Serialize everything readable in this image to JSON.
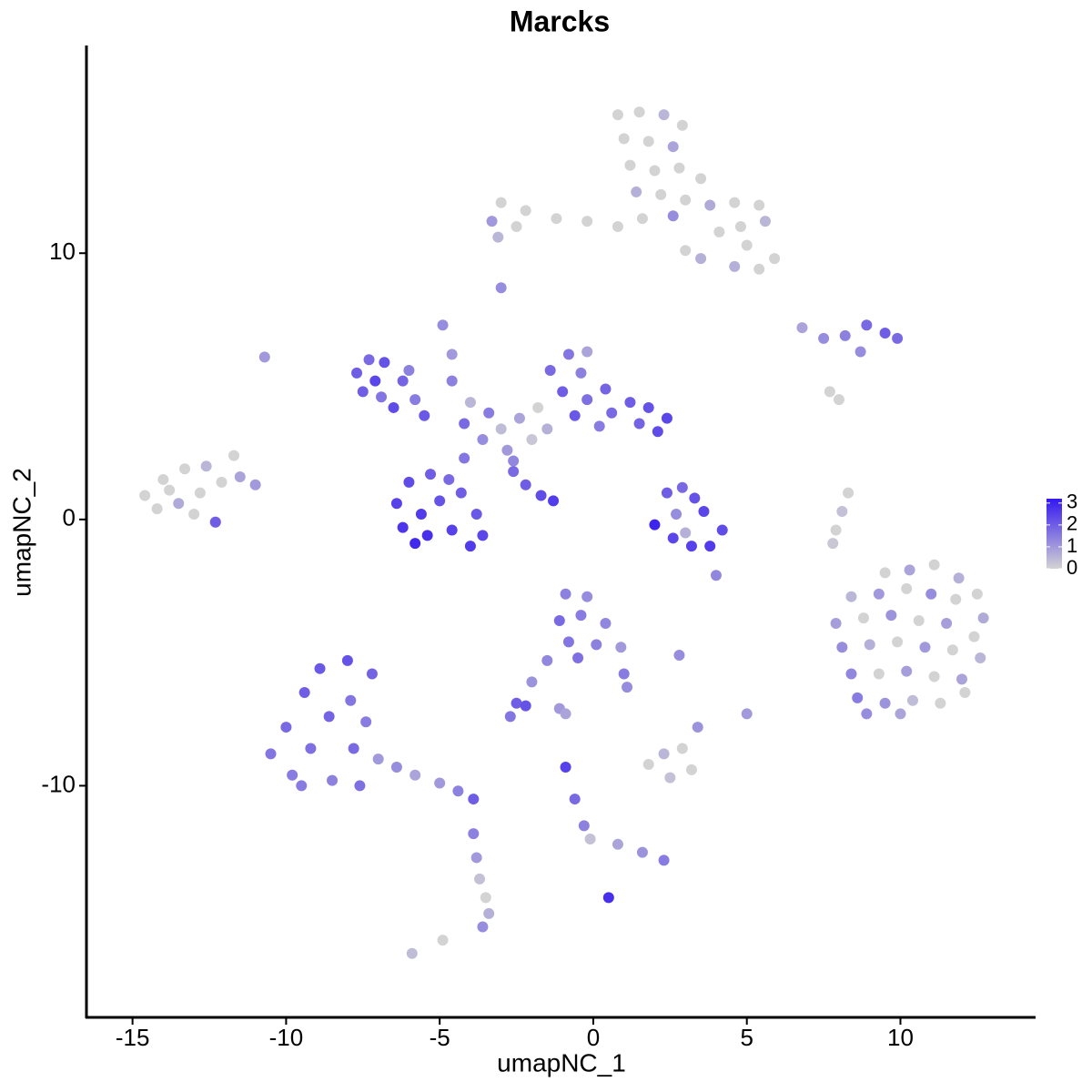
{
  "chart_data": {
    "type": "scatter",
    "title": "Marcks",
    "x_label": "umapNC_1",
    "y_label": "umapNC_2",
    "xlim": [
      -16.5,
      14.4
    ],
    "ylim": [
      -18.7,
      17.8
    ],
    "xticks": [
      -15,
      -10,
      -5,
      0,
      5,
      10
    ],
    "yticks": [
      -10,
      0,
      10
    ],
    "colorbar": {
      "lim": [
        0,
        3.2
      ],
      "ticks": [
        0,
        1,
        2,
        3
      ],
      "colors": [
        "#d3d3d3",
        "#3318f0"
      ]
    },
    "x": [
      0.8,
      1.5,
      2.3,
      2.9,
      1.0,
      1.8,
      2.6,
      1.2,
      2.0,
      2.8,
      3.5,
      1.4,
      2.2,
      3.0,
      3.8,
      4.6,
      5.4,
      5.6,
      4.8,
      4.1,
      1.6,
      2.6,
      5.0,
      5.9,
      5.4,
      4.6,
      0.8,
      -0.2,
      -1.2,
      -2.2,
      -3.0,
      -3.3,
      -2.5,
      -3.1,
      3.0,
      3.5,
      -14.6,
      -14.0,
      -13.3,
      -12.6,
      -14.2,
      -13.5,
      -12.8,
      -12.1,
      -11.5,
      -11.7,
      -11.0,
      -13.0,
      -12.3,
      -13.8,
      -7.7,
      -7.3,
      -6.8,
      -7.5,
      -6.9,
      -6.2,
      -6.5,
      -5.8,
      -5.5,
      -6.0,
      -7.1,
      -6.4,
      -6.0,
      -5.3,
      -4.7,
      -6.2,
      -5.6,
      -5.0,
      -4.3,
      -5.4,
      -4.6,
      -3.8,
      -3.6,
      -4.2,
      -5.8,
      -4.0,
      -3.6,
      -3.0,
      -2.4,
      -1.8,
      -2.8,
      -2.0,
      -3.4,
      -4.2,
      -1.5,
      -4.6,
      -4.9,
      -4.6,
      -4.0,
      -2.6,
      -1.4,
      -0.8,
      -0.4,
      -1.0,
      -0.2,
      0.4,
      -0.6,
      0.6,
      1.2,
      1.8,
      2.4,
      2.1,
      1.5,
      0.2,
      -0.2,
      -2.6,
      -2.2,
      -1.7,
      -1.3,
      2.4,
      2.9,
      3.3,
      3.6,
      4.2,
      3.8,
      3.2,
      2.6,
      2.0,
      2.7,
      3.0,
      6.8,
      7.5,
      8.2,
      8.9,
      9.5,
      9.9,
      8.7,
      7.7,
      8.0,
      9.5,
      10.3,
      11.1,
      11.9,
      12.5,
      8.4,
      9.3,
      10.2,
      11.0,
      11.8,
      12.7,
      7.9,
      8.8,
      9.7,
      10.6,
      11.5,
      12.4,
      8.1,
      9.0,
      9.9,
      10.8,
      11.7,
      12.6,
      8.4,
      9.3,
      10.2,
      11.1,
      12.0,
      8.6,
      9.5,
      10.4,
      11.3,
      12.1,
      8.9,
      10.0,
      -0.9,
      -0.2,
      -1.1,
      -0.4,
      0.4,
      -0.8,
      0.1,
      0.9,
      -0.5,
      1.0,
      1.1,
      -1.5,
      -2.0,
      -2.5,
      -2.2,
      -2.7,
      -1.1,
      -10.5,
      -10.0,
      -9.8,
      -9.4,
      -9.2,
      -8.9,
      -8.6,
      -8.5,
      -8.0,
      -7.9,
      -7.8,
      -7.4,
      -7.6,
      -7.0,
      -6.4,
      -5.8,
      -5.0,
      -4.4,
      -3.9,
      -9.5,
      -7.2,
      -3.9,
      -3.8,
      -3.7,
      -3.5,
      -3.4,
      -3.6,
      -5.9,
      -4.9,
      1.8,
      2.3,
      2.9,
      3.2,
      2.5,
      -0.9,
      -0.6,
      -0.3,
      -0.1,
      0.8,
      1.6,
      2.3,
      0.5,
      8.3,
      8.1,
      7.9,
      7.8,
      -10.7,
      -3.0,
      4.0,
      5.0,
      3.4,
      2.8,
      -0.9,
      -12.3
    ],
    "y": [
      15.2,
      15.3,
      15.2,
      14.8,
      14.3,
      14.2,
      14.0,
      13.3,
      13.1,
      13.2,
      12.8,
      12.3,
      12.2,
      12.0,
      11.8,
      11.9,
      11.8,
      11.2,
      11.0,
      10.8,
      11.3,
      11.4,
      10.3,
      9.8,
      9.4,
      9.5,
      11.0,
      11.2,
      11.3,
      11.6,
      11.9,
      11.2,
      11.0,
      10.6,
      10.1,
      9.8,
      0.9,
      1.5,
      1.9,
      2.0,
      0.4,
      0.6,
      1.0,
      1.4,
      1.6,
      2.4,
      1.3,
      0.2,
      -0.1,
      1.1,
      5.5,
      6.0,
      5.9,
      4.8,
      4.6,
      5.2,
      4.2,
      4.5,
      3.9,
      5.6,
      5.2,
      0.6,
      1.4,
      1.7,
      1.5,
      -0.3,
      0.2,
      0.7,
      1.0,
      -0.6,
      -0.4,
      0.2,
      -0.6,
      2.3,
      -0.9,
      -1.0,
      3.0,
      3.4,
      3.8,
      4.2,
      2.6,
      3.0,
      4.0,
      3.6,
      3.4,
      5.2,
      7.3,
      6.2,
      4.4,
      2.2,
      5.6,
      6.2,
      5.5,
      4.8,
      4.5,
      4.9,
      3.9,
      4.0,
      4.4,
      4.2,
      3.8,
      3.3,
      3.6,
      3.5,
      6.3,
      1.8,
      1.3,
      0.9,
      0.7,
      1.0,
      1.2,
      0.8,
      0.3,
      -0.4,
      -1.0,
      -1.0,
      -0.7,
      -0.2,
      0.2,
      -0.5,
      7.2,
      6.8,
      6.9,
      7.3,
      7.0,
      6.8,
      6.3,
      4.8,
      4.5,
      -2.0,
      -1.9,
      -1.7,
      -2.2,
      -2.8,
      -2.9,
      -2.8,
      -2.6,
      -2.8,
      -3.0,
      -3.7,
      -3.9,
      -3.7,
      -3.6,
      -3.8,
      -3.9,
      -4.4,
      -4.8,
      -4.7,
      -4.6,
      -4.8,
      -4.9,
      -5.2,
      -5.8,
      -5.8,
      -5.7,
      -5.9,
      -6.0,
      -6.7,
      -6.9,
      -6.8,
      -6.9,
      -6.5,
      -7.3,
      -7.3,
      -2.8,
      -2.9,
      -3.8,
      -3.6,
      -3.9,
      -4.6,
      -4.7,
      -4.8,
      -5.2,
      -5.8,
      -6.3,
      -5.3,
      -6.1,
      -6.9,
      -7.0,
      -7.4,
      -7.1,
      -8.8,
      -7.8,
      -9.6,
      -6.5,
      -8.6,
      -5.6,
      -7.4,
      -9.8,
      -5.3,
      -6.8,
      -8.6,
      -7.6,
      -10.0,
      -9.0,
      -9.3,
      -9.6,
      -9.9,
      -10.2,
      -10.5,
      -10.0,
      -5.8,
      -11.8,
      -12.7,
      -13.5,
      -14.2,
      -14.8,
      -15.3,
      -16.3,
      -15.8,
      -9.2,
      -8.8,
      -8.6,
      -9.4,
      -9.7,
      -9.3,
      -10.5,
      -11.5,
      -12.0,
      -12.2,
      -12.5,
      -12.8,
      -14.2,
      1.0,
      0.3,
      -0.4,
      -0.9,
      6.1,
      8.7,
      -2.1,
      -7.3,
      -7.8,
      -5.1,
      -7.3,
      -0.1
    ],
    "values": [
      0,
      0,
      0.5,
      0,
      0,
      0,
      0.8,
      0,
      0,
      0,
      0,
      0.6,
      0,
      0,
      0.7,
      0,
      0,
      0.5,
      0,
      0,
      0,
      1.2,
      0,
      0,
      0,
      0.6,
      0,
      0,
      0,
      0,
      0,
      1.0,
      0,
      0.5,
      0,
      0.6,
      0,
      0,
      0,
      0.5,
      0,
      0.7,
      0,
      0,
      0.8,
      0,
      1.0,
      0,
      0.9,
      0,
      2.0,
      1.8,
      2.2,
      2.0,
      1.6,
      1.9,
      2.3,
      1.5,
      2.1,
      1.4,
      2.4,
      2.5,
      2.3,
      2.0,
      1.8,
      2.7,
      2.6,
      2.2,
      2.0,
      2.8,
      2.5,
      2.1,
      2.4,
      1.6,
      2.9,
      2.6,
      1.2,
      0.4,
      0.8,
      0,
      1.0,
      0.2,
      1.5,
      1.8,
      0.6,
      1.4,
      1.2,
      1.0,
      0.5,
      1.3,
      1.8,
      1.6,
      1.4,
      2.0,
      1.7,
      1.9,
      2.1,
      1.8,
      2.0,
      2.2,
      2.4,
      2.3,
      1.9,
      1.5,
      0.8,
      1.8,
      2.0,
      2.3,
      2.6,
      2.0,
      1.8,
      2.2,
      2.4,
      2.3,
      2.6,
      2.5,
      2.4,
      3.0,
      1.2,
      0.6,
      0.8,
      1.2,
      1.4,
      1.8,
      2.0,
      1.8,
      1.2,
      0,
      0,
      0,
      0.8,
      0,
      0.6,
      0,
      0.5,
      1.0,
      0,
      1.2,
      0,
      0.7,
      0.9,
      0,
      1.1,
      0,
      0.9,
      0,
      1.2,
      0.6,
      0,
      1.0,
      0,
      0.5,
      1.3,
      0,
      0.9,
      0,
      0.8,
      1.5,
      1.1,
      0.4,
      0,
      0,
      1.2,
      0.8,
      1.4,
      1.2,
      1.8,
      1.5,
      1.3,
      1.6,
      1.4,
      1.0,
      1.7,
      1.5,
      1.2,
      1.3,
      1.1,
      2.0,
      2.2,
      1.6,
      1.0,
      1.6,
      1.8,
      1.5,
      2.0,
      1.7,
      2.1,
      1.9,
      1.4,
      2.2,
      1.6,
      1.8,
      1.5,
      1.7,
      1.0,
      1.2,
      0.8,
      1.0,
      1.4,
      2.0,
      1.5,
      1.9,
      1.4,
      1.0,
      0.3,
      0,
      0.6,
      1.2,
      0.4,
      0,
      0,
      0.5,
      0,
      0,
      0.3,
      2.5,
      1.8,
      1.4,
      0.3,
      0.8,
      1.1,
      1.5,
      2.8,
      0,
      0.3,
      0,
      0.2,
      1.0,
      1.2,
      1.3,
      1.0,
      1.1,
      1.2,
      0.8,
      2.0
    ]
  }
}
